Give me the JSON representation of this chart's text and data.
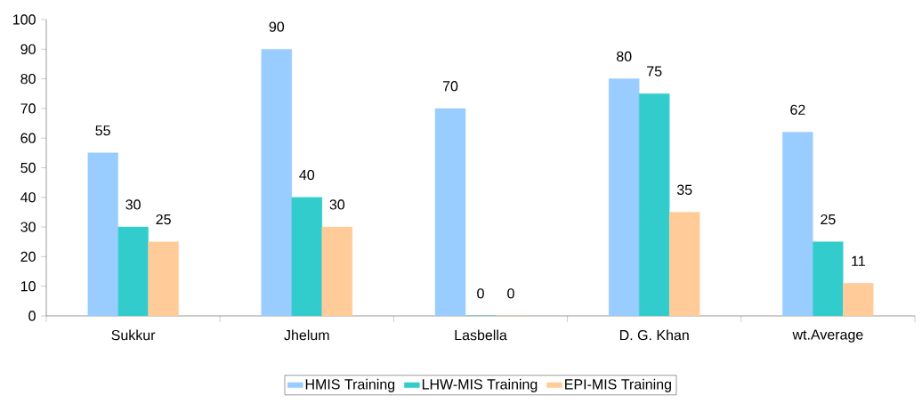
{
  "chart_data": {
    "type": "bar",
    "categories": [
      "Sukkur",
      "Jhelum",
      "Lasbella",
      "D. G. Khan",
      "wt.Average"
    ],
    "series": [
      {
        "name": "HMIS Training",
        "color": "#99ccff",
        "values": [
          55,
          90,
          70,
          80,
          62
        ]
      },
      {
        "name": "LHW-MIS Training",
        "color": "#33cccc",
        "values": [
          30,
          40,
          0,
          75,
          25
        ]
      },
      {
        "name": "EPI-MIS Training",
        "color": "#ffcc99",
        "values": [
          25,
          30,
          0,
          35,
          11
        ]
      }
    ],
    "ylim": [
      0,
      100
    ],
    "yticks": [
      0,
      10,
      20,
      30,
      40,
      50,
      60,
      70,
      80,
      90,
      100
    ],
    "data_labels": true,
    "grid": false,
    "legend": "bottom"
  }
}
